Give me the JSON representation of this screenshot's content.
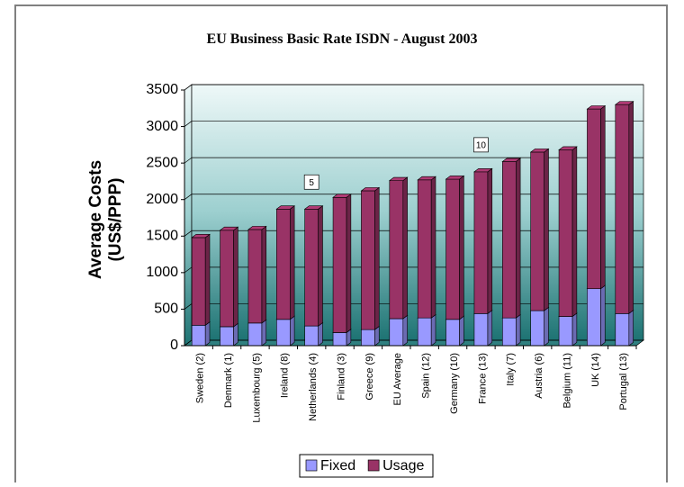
{
  "chart_data": {
    "type": "stacked-bar-3d",
    "title": "EU Business Basic Rate ISDN - August 2003",
    "y_label": [
      "Average Costs",
      "(US$/PPP)"
    ],
    "categories": [
      "Sweden (2)",
      "Denmark (1)",
      "Luxembourg (5)",
      "Ireland (8)",
      "Netherlands (4)",
      "Finland (3)",
      "Greece (9)",
      "EU Average",
      "Spain (12)",
      "Germany (10)",
      "France (13)",
      "Italy (7)",
      "Austria (6)",
      "Belgium (11)",
      "UK (14)",
      "Portugal (13)"
    ],
    "series": [
      {
        "name": "Fixed",
        "color": "#9999ff",
        "values": [
          280,
          260,
          310,
          360,
          270,
          180,
          220,
          370,
          380,
          360,
          440,
          380,
          480,
          400,
          780,
          440
        ]
      },
      {
        "name": "Usage",
        "color": "#993366",
        "values": [
          1200,
          1320,
          1280,
          1510,
          1600,
          1850,
          1900,
          1890,
          1890,
          1920,
          1940,
          2140,
          2170,
          2280,
          2460,
          2860
        ]
      }
    ],
    "annotations": [
      {
        "text": "5",
        "category": "Netherlands (4)"
      },
      {
        "text": "10",
        "category": "France (13)"
      }
    ],
    "ylim": [
      0,
      3500
    ],
    "yticks": [
      0,
      500,
      1000,
      1500,
      2000,
      2500,
      3000,
      3500
    ],
    "grid": true,
    "legend": "bottom"
  }
}
